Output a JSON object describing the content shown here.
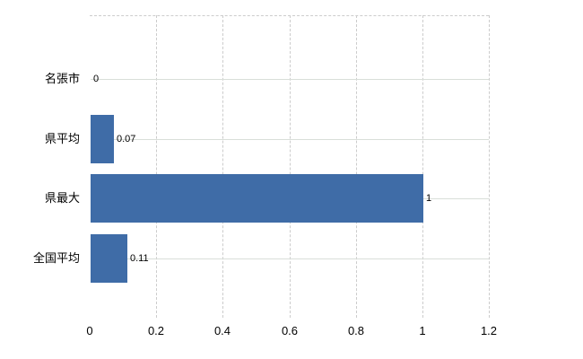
{
  "chart_data": {
    "type": "bar",
    "orientation": "horizontal",
    "title": "",
    "xlabel": "",
    "ylabel": "",
    "categories": [
      "名張市",
      "県平均",
      "県最大",
      "全国平均"
    ],
    "values": [
      0,
      0.07,
      1,
      0.11
    ],
    "data_labels": [
      "0",
      "0.07",
      "1",
      "0.11"
    ],
    "xlim": [
      0,
      1.2
    ],
    "x_ticks": [
      0,
      0.2,
      0.4,
      0.6,
      0.8,
      1,
      1.2
    ],
    "x_tick_labels": [
      "0",
      "0.2",
      "0.4",
      "0.6",
      "0.8",
      "1",
      "1.2"
    ],
    "grid": {
      "vertical": "dashed",
      "horizontal": "solid"
    },
    "legend": "none",
    "colors": {
      "bar": "#3f6ca7",
      "vertical_gridline": "#cccccc",
      "horizontal_gridline": "#d9ded9",
      "plot_border": "#cccccc",
      "axis": "#000000",
      "text": "#000000",
      "background": "#ffffff"
    }
  }
}
